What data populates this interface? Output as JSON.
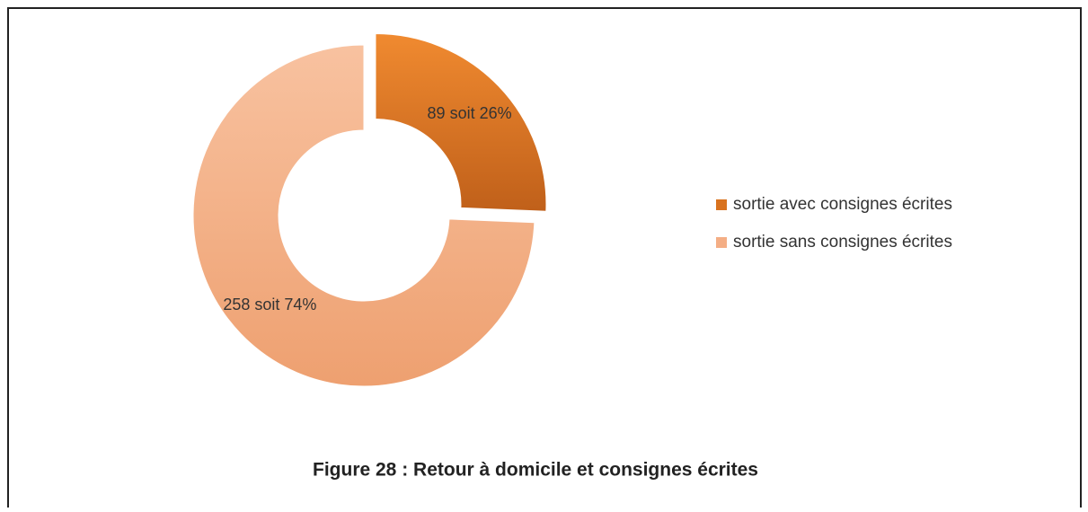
{
  "chart_data": {
    "type": "pie",
    "donut": true,
    "title": "Figure 28 : Retour à domicile et consignes écrites",
    "categories": [
      "sortie avec consignes écrites",
      "sortie sans consignes écrites"
    ],
    "values": [
      89,
      258
    ],
    "value_labels": [
      "89 soit 26%",
      "258 soit 74%"
    ],
    "colors": [
      "#d9731f",
      "#f4ae85"
    ],
    "legend": "right"
  }
}
